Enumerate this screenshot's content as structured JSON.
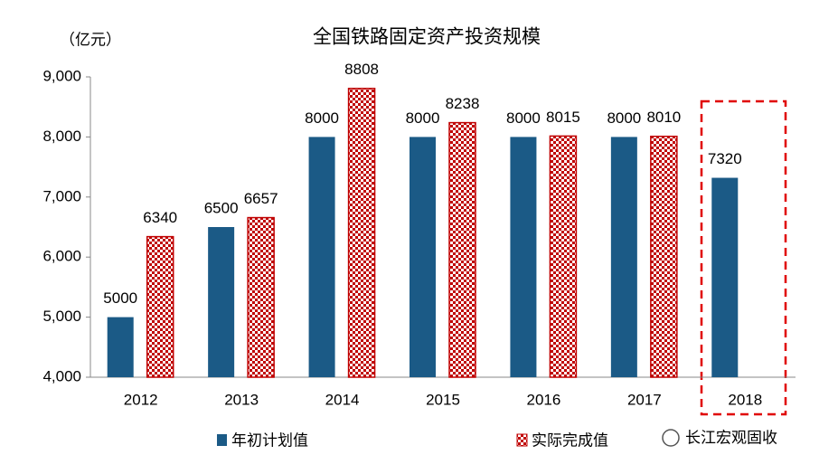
{
  "chart_data": {
    "type": "bar",
    "title": "全国铁路固定资产投资规模",
    "y_label": "（亿元）",
    "categories": [
      "2012",
      "2013",
      "2014",
      "2015",
      "2016",
      "2017",
      "2018"
    ],
    "series": [
      {
        "name": "年初计划值",
        "color": "#1b5a86",
        "values": [
          5000,
          6500,
          8000,
          8000,
          8000,
          8000,
          7320
        ]
      },
      {
        "name": "实际完成值",
        "color": "#c00000",
        "values": [
          6340,
          6657,
          8808,
          8238,
          8015,
          8010,
          null
        ]
      }
    ],
    "ylim": [
      4000,
      9000
    ],
    "yticks": [
      {
        "value": 4000,
        "label": "4,000"
      },
      {
        "value": 5000,
        "label": "5,000"
      },
      {
        "value": 6000,
        "label": "6,000"
      },
      {
        "value": 7000,
        "label": "7,000"
      },
      {
        "value": 8000,
        "label": "8,000"
      },
      {
        "value": 9000,
        "label": "9,000"
      }
    ],
    "grid": false,
    "legend": "bottom",
    "watermark": "长江宏观固收"
  }
}
